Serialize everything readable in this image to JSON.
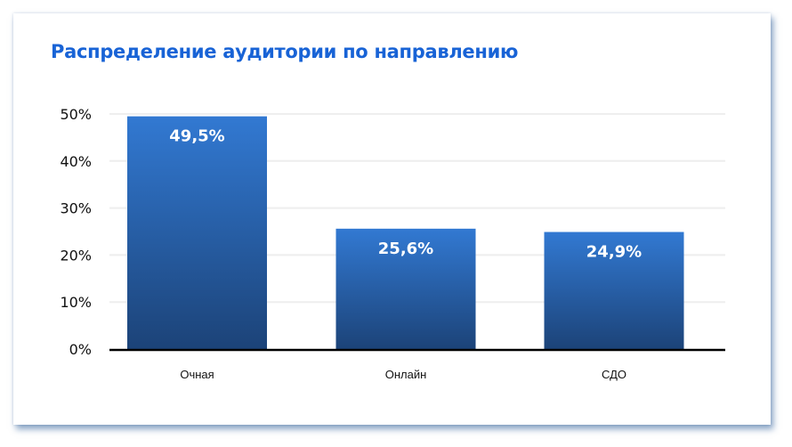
{
  "chart_data": {
    "type": "bar",
    "title": "Распределение аудитории по направлению",
    "categories": [
      "Очная",
      "Онлайн",
      "СДО"
    ],
    "values": [
      49.5,
      25.6,
      24.9
    ],
    "data_labels": [
      "49,5%",
      "25,6%",
      "24,9%"
    ],
    "yticks": [
      "0%",
      "10%",
      "20%",
      "30%",
      "40%",
      "50%"
    ],
    "ylim": [
      0,
      50
    ],
    "grid": true,
    "colors": {
      "bar_top": "#3279d2",
      "bar_bottom": "#1c4378",
      "title": "#1863d6"
    }
  }
}
